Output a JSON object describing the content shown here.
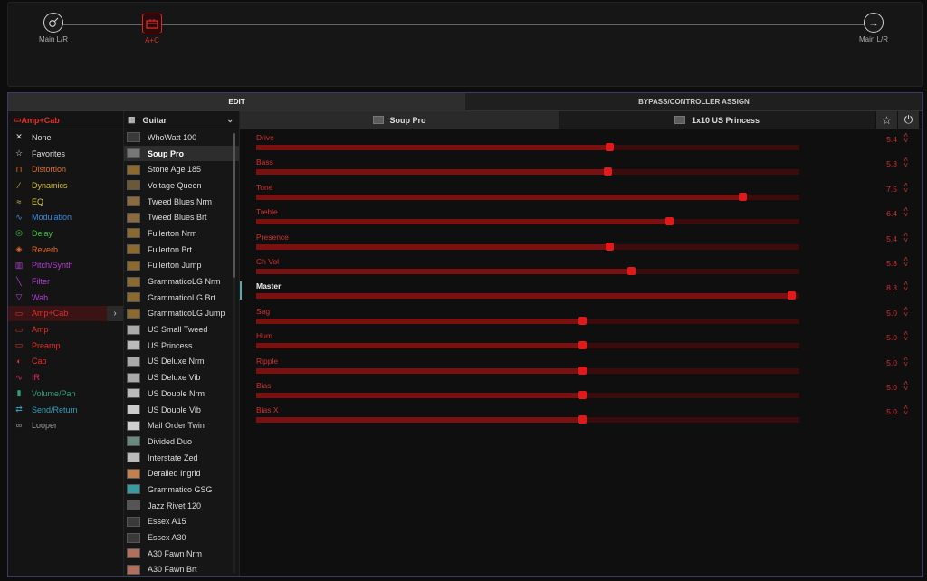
{
  "signal": {
    "input_label": "Main L/R",
    "block_label": "A+C",
    "output_label": "Main L/R"
  },
  "tabs": [
    "EDIT",
    "BYPASS/CONTROLLER ASSIGN"
  ],
  "categories": {
    "header": "Amp+Cab",
    "items": [
      {
        "label": "None",
        "color": "#dddddd",
        "icon": "x-icon"
      },
      {
        "label": "Favorites",
        "color": "#dddddd",
        "icon": "star-icon"
      },
      {
        "label": "Distortion",
        "color": "#e0702a",
        "icon": "distortion-icon"
      },
      {
        "label": "Dynamics",
        "color": "#d8c030",
        "icon": "dynamics-icon"
      },
      {
        "label": "EQ",
        "color": "#e0d040",
        "icon": "eq-icon"
      },
      {
        "label": "Modulation",
        "color": "#3a8ae0",
        "icon": "modulation-icon"
      },
      {
        "label": "Delay",
        "color": "#40c040",
        "icon": "delay-icon"
      },
      {
        "label": "Reverb",
        "color": "#e06a2a",
        "icon": "reverb-icon"
      },
      {
        "label": "Pitch/Synth",
        "color": "#b040d0",
        "icon": "pitch-icon"
      },
      {
        "label": "Filter",
        "color": "#b040d0",
        "icon": "filter-icon"
      },
      {
        "label": "Wah",
        "color": "#b040d0",
        "icon": "wah-icon"
      },
      {
        "label": "Amp+Cab",
        "color": "#e0302e",
        "icon": "ampcab-icon"
      },
      {
        "label": "Amp",
        "color": "#e0302e",
        "icon": "amp-icon"
      },
      {
        "label": "Preamp",
        "color": "#e0302e",
        "icon": "preamp-icon"
      },
      {
        "label": "Cab",
        "color": "#e0302e",
        "icon": "cab-icon"
      },
      {
        "label": "IR",
        "color": "#e03060",
        "icon": "ir-icon"
      },
      {
        "label": "Volume/Pan",
        "color": "#30a080",
        "icon": "volume-icon"
      },
      {
        "label": "Send/Return",
        "color": "#30a0c0",
        "icon": "send-icon"
      },
      {
        "label": "Looper",
        "color": "#9a9a9a",
        "icon": "looper-icon"
      }
    ]
  },
  "models": {
    "header": "Guitar",
    "items": [
      "WhoWatt 100",
      "Soup Pro",
      "Stone Age 185",
      "Voltage Queen",
      "Tweed Blues Nrm",
      "Tweed Blues Brt",
      "Fullerton Nrm",
      "Fullerton Brt",
      "Fullerton Jump",
      "GrammaticoLG Nrm",
      "GrammaticoLG Brt",
      "GrammaticoLG Jump",
      "US Small Tweed",
      "US Princess",
      "US Deluxe Nrm",
      "US Deluxe Vib",
      "US Double Nrm",
      "US Double Vib",
      "Mail Order Twin",
      "Divided Duo",
      "Interstate Zed",
      "Derailed Ingrid",
      "Grammatico GSG",
      "Jazz Rivet 120",
      "Essex A15",
      "Essex A30",
      "A30 Fawn Nrm",
      "A30 Fawn Brt"
    ]
  },
  "panel": {
    "amp_model": "Soup Pro",
    "cab_model": "1x10 US Princess"
  },
  "params": [
    {
      "name": "Drive",
      "value": "5.4",
      "level": 0.65
    },
    {
      "name": "Bass",
      "value": "5.3",
      "level": 0.646
    },
    {
      "name": "Tone",
      "value": "7.5",
      "level": 0.895
    },
    {
      "name": "Treble",
      "value": "6.4",
      "level": 0.76
    },
    {
      "name": "Presence",
      "value": "5.4",
      "level": 0.65
    },
    {
      "name": "Ch Vol",
      "value": "5.8",
      "level": 0.69
    },
    {
      "name": "Master",
      "value": "8.3",
      "level": 0.985
    },
    {
      "name": "Sag",
      "value": "5.0",
      "level": 0.6
    },
    {
      "name": "Hum",
      "value": "5.0",
      "level": 0.6
    },
    {
      "name": "Ripple",
      "value": "5.0",
      "level": 0.6
    },
    {
      "name": "Bias",
      "value": "5.0",
      "level": 0.6
    },
    {
      "name": "Bias X",
      "value": "5.0",
      "level": 0.6
    }
  ]
}
